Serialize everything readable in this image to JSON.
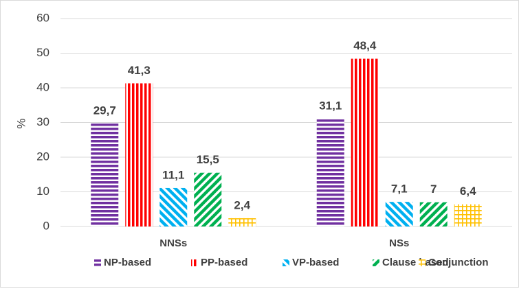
{
  "chart_data": {
    "type": "bar",
    "y_label": "%",
    "categories": [
      "NNSs",
      "NSs"
    ],
    "series": [
      {
        "name": "NP-based",
        "color": "#7030a0",
        "pattern": "horizontal",
        "values": [
          29.7,
          31.1
        ],
        "value_labels": [
          "29,7",
          "31,1"
        ]
      },
      {
        "name": "PP-based",
        "color": "#ff0000",
        "pattern": "vertical",
        "values": [
          41.3,
          48.4
        ],
        "value_labels": [
          "41,3",
          "48,4"
        ]
      },
      {
        "name": "VP-based",
        "color": "#00b0f0",
        "pattern": "diagonal-down",
        "values": [
          11.1,
          7.1
        ],
        "value_labels": [
          "11,1",
          "7,1"
        ]
      },
      {
        "name": "Clause based",
        "color": "#00b050",
        "pattern": "diagonal-up",
        "values": [
          15.5,
          7
        ],
        "value_labels": [
          "15,5",
          "7"
        ]
      },
      {
        "name": "Conjunction",
        "color": "#ffc000",
        "pattern": "grid",
        "values": [
          2.4,
          6.4
        ],
        "value_labels": [
          "2,4",
          "6,4"
        ]
      }
    ],
    "ylim": [
      0,
      60
    ],
    "yticks": [
      0,
      10,
      20,
      30,
      40,
      50,
      60
    ],
    "grid": true,
    "legend": "bottom"
  }
}
